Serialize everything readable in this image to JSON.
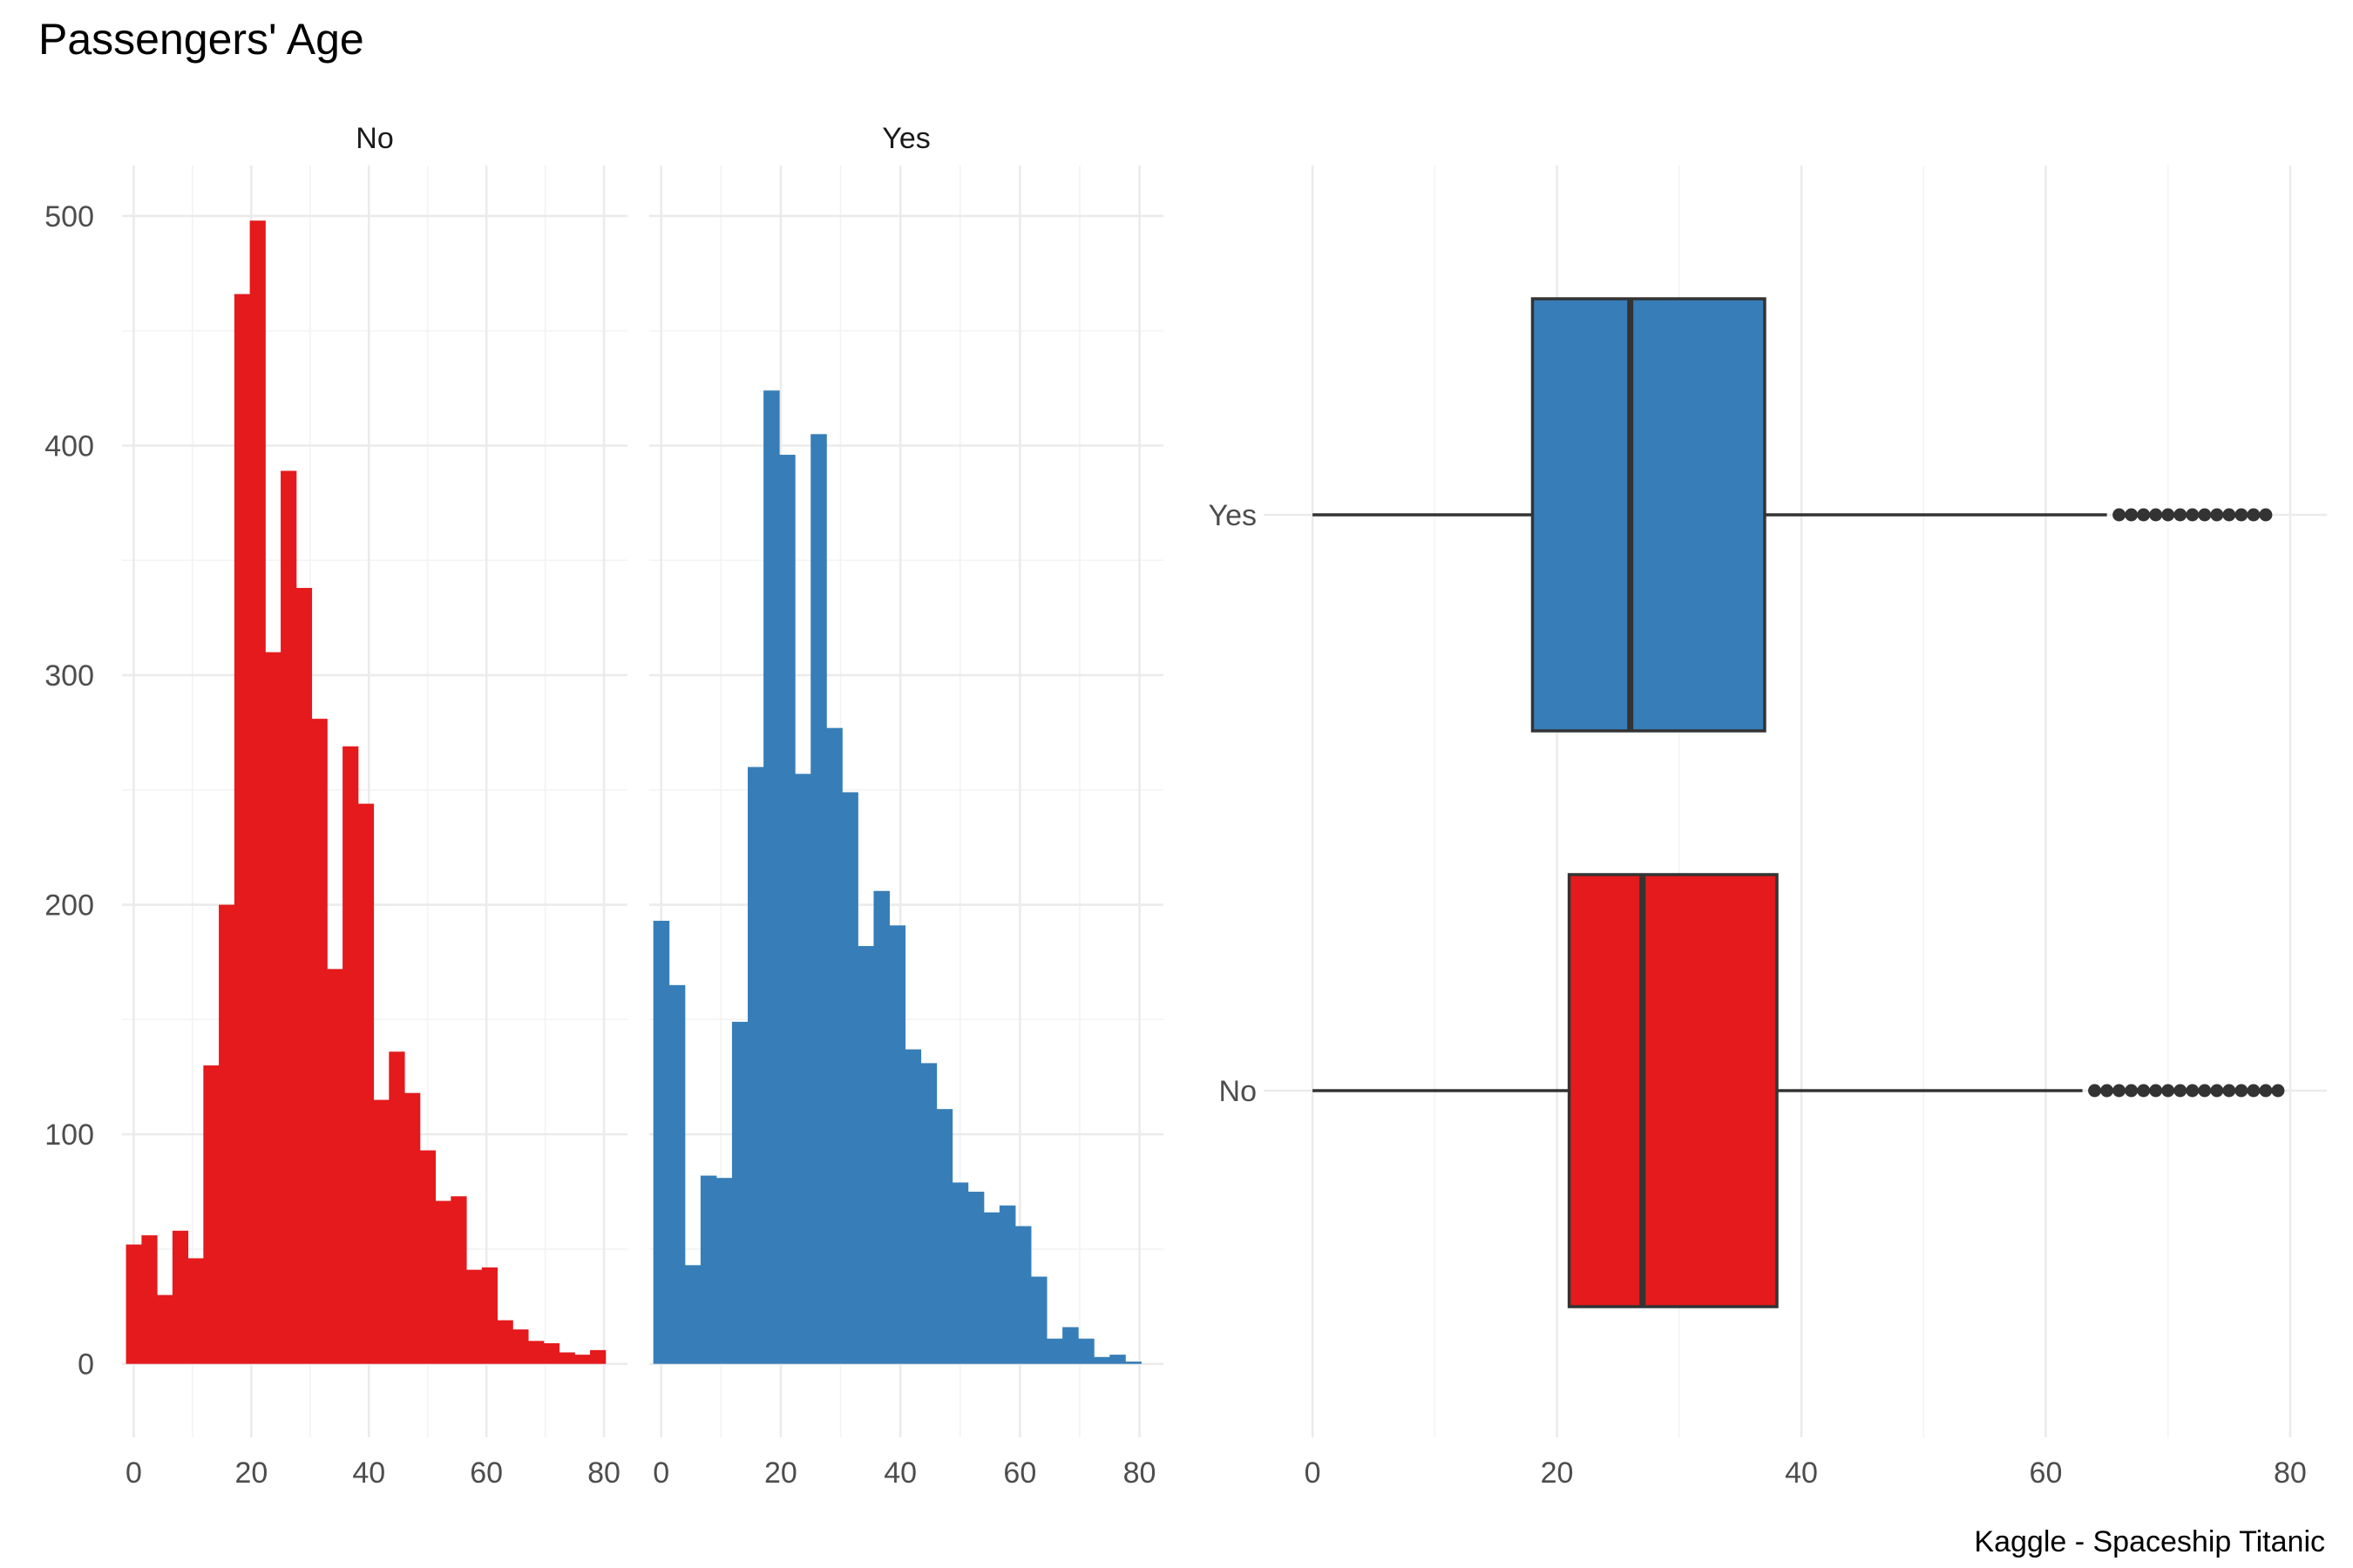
{
  "title": "Passengers' Age",
  "caption": "Kaggle - Spaceship Titanic",
  "colors": {
    "No": "#E41A1C",
    "Yes": "#377EB8",
    "box_outline": "#333333",
    "grid": "#ebebeb"
  },
  "chart_data": [
    {
      "type": "bar",
      "subtype": "histogram",
      "facets": [
        "No",
        "Yes"
      ],
      "x_ticks": [
        0,
        20,
        40,
        60,
        80
      ],
      "y_ticks": [
        0,
        100,
        200,
        300,
        400,
        500
      ],
      "xlim": [
        -2,
        84
      ],
      "ylim": [
        -32,
        522
      ],
      "bin_width": 2.63,
      "series": [
        {
          "name": "No",
          "bins_start": [
            -1.32,
            1.32,
            3.95,
            6.58,
            9.21,
            11.84,
            14.47,
            17.11,
            19.74,
            22.37,
            25.0,
            27.63,
            30.26,
            32.89,
            35.53,
            38.16,
            40.79,
            43.42,
            46.05,
            48.68,
            51.32,
            53.95,
            56.58,
            59.21,
            61.84,
            64.47,
            67.11,
            69.74,
            72.37,
            75.0,
            77.63
          ],
          "values": [
            52,
            56,
            30,
            58,
            46,
            130,
            200,
            466,
            498,
            310,
            389,
            338,
            281,
            172,
            269,
            244,
            115,
            136,
            118,
            93,
            71,
            73,
            41,
            42,
            19,
            15,
            10,
            9,
            5,
            4,
            6
          ]
        },
        {
          "name": "Yes",
          "bins_start": [
            -1.32,
            1.32,
            3.95,
            6.58,
            9.21,
            11.84,
            14.47,
            17.11,
            19.74,
            22.37,
            25.0,
            27.63,
            30.26,
            32.89,
            35.53,
            38.16,
            40.79,
            43.42,
            46.05,
            48.68,
            51.32,
            53.95,
            56.58,
            59.21,
            61.84,
            64.47,
            67.11,
            69.74,
            72.37,
            75.0,
            77.63
          ],
          "values": [
            193,
            165,
            43,
            82,
            81,
            149,
            260,
            424,
            396,
            257,
            405,
            277,
            249,
            182,
            206,
            191,
            137,
            131,
            111,
            79,
            75,
            66,
            69,
            60,
            38,
            11,
            16,
            11,
            3,
            4,
            1
          ]
        }
      ]
    },
    {
      "type": "boxplot",
      "orientation": "horizontal",
      "categories": [
        "Yes",
        "No"
      ],
      "x_ticks": [
        0,
        20,
        40,
        60,
        80
      ],
      "xlim": [
        -4,
        83
      ],
      "series": [
        {
          "name": "Yes",
          "min": 0,
          "q1": 18,
          "median": 26,
          "q3": 37,
          "whisker_high": 65,
          "outliers": [
            66,
            67,
            68,
            69,
            70,
            71,
            72,
            73,
            74,
            75,
            76,
            77,
            78
          ]
        },
        {
          "name": "No",
          "min": 0,
          "q1": 21,
          "median": 27,
          "q3": 38,
          "whisker_high": 63,
          "outliers": [
            64,
            65,
            66,
            67,
            68,
            69,
            70,
            71,
            72,
            73,
            74,
            75,
            76,
            77,
            78,
            79
          ]
        }
      ]
    }
  ]
}
